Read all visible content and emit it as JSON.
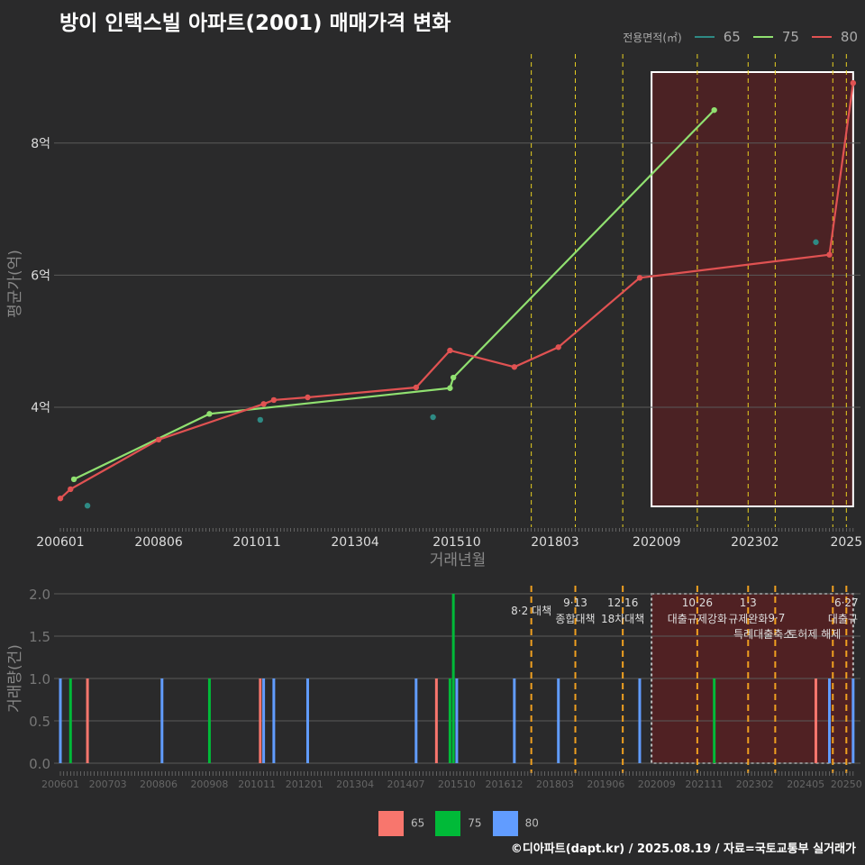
{
  "title": "방이 인택스빌 아파트(2001) 매매가격 변화",
  "legend_title": "전용면적(㎡)",
  "series_colors": {
    "65": "#2e8a84",
    "75": "#90e070",
    "80": "#e05252"
  },
  "bar_colors": {
    "65": "#f8766d",
    "75": "#00ba38",
    "80": "#619cff"
  },
  "footer": "©디아파트(dapt.kr) / 2025.08.19 / 자료=국토교통부 실거래가",
  "chart_data": [
    {
      "type": "line",
      "title": "방이 인택스빌 아파트(2001) 매매가격 변화",
      "xlabel": "거래년월",
      "ylabel": "평균가(억)",
      "x_origin": "200601",
      "x_unit": "months since 200601",
      "xticks": [
        {
          "m": 0,
          "label": "200601"
        },
        {
          "m": 29,
          "label": "200806"
        },
        {
          "m": 58,
          "label": "201011"
        },
        {
          "m": 87,
          "label": "201304"
        },
        {
          "m": 117,
          "label": "201510"
        },
        {
          "m": 146,
          "label": "201803"
        },
        {
          "m": 176,
          "label": "202009"
        },
        {
          "m": 205,
          "label": "202302"
        },
        {
          "m": 232,
          "label": "2025"
        }
      ],
      "yticks": [
        {
          "v": 4,
          "label": "4억"
        },
        {
          "v": 6,
          "label": "6억"
        },
        {
          "v": 8,
          "label": "8억"
        }
      ],
      "ylim": [
        2.1,
        9.5
      ],
      "series": [
        {
          "name": "65",
          "mode": "points",
          "points": [
            [
              8,
              2.51
            ],
            [
              59,
              3.81
            ],
            [
              110,
              3.85
            ],
            [
              223,
              6.5
            ]
          ]
        },
        {
          "name": "75",
          "mode": "line",
          "points": [
            [
              4,
              2.91
            ],
            [
              44,
              3.9
            ],
            [
              115,
              4.29
            ],
            [
              116,
              4.45
            ],
            [
              193,
              8.5
            ]
          ]
        },
        {
          "name": "80",
          "mode": "line",
          "points": [
            [
              0,
              2.62
            ],
            [
              3,
              2.76
            ],
            [
              29,
              3.51
            ],
            [
              60,
              4.05
            ],
            [
              63,
              4.11
            ],
            [
              73,
              4.15
            ],
            [
              105,
              4.3
            ],
            [
              115,
              4.86
            ],
            [
              134,
              4.61
            ],
            [
              147,
              4.91
            ],
            [
              171,
              5.96
            ],
            [
              227,
              6.31
            ],
            [
              234,
              8.91
            ]
          ]
        }
      ],
      "policy_lines": [
        139,
        152,
        166,
        188,
        203,
        211,
        228,
        232
      ],
      "highlight_range": [
        174.5,
        234
      ]
    },
    {
      "type": "bar",
      "xlabel": "",
      "ylabel": "거래량(건)",
      "yticks": [
        {
          "v": 0,
          "label": "0.0"
        },
        {
          "v": 0.5,
          "label": "0.5"
        },
        {
          "v": 1,
          "label": "1.0"
        },
        {
          "v": 1.5,
          "label": "1.5"
        },
        {
          "v": 2,
          "label": "2.0"
        }
      ],
      "ylim": [
        0,
        2
      ],
      "xticks": [
        {
          "m": 0,
          "label": "200601"
        },
        {
          "m": 14,
          "label": "200703"
        },
        {
          "m": 29,
          "label": "200806"
        },
        {
          "m": 44,
          "label": "200908"
        },
        {
          "m": 58,
          "label": "201011"
        },
        {
          "m": 72,
          "label": "201201"
        },
        {
          "m": 87,
          "label": "201304"
        },
        {
          "m": 102,
          "label": "201407"
        },
        {
          "m": 117,
          "label": "201510"
        },
        {
          "m": 131,
          "label": "201612"
        },
        {
          "m": 146,
          "label": "201803"
        },
        {
          "m": 161,
          "label": "201906"
        },
        {
          "m": 176,
          "label": "202009"
        },
        {
          "m": 190,
          "label": "202111"
        },
        {
          "m": 205,
          "label": "202302"
        },
        {
          "m": 220,
          "label": "202405"
        },
        {
          "m": 232,
          "label": "20250"
        }
      ],
      "bars": [
        {
          "m": 0,
          "s": "80",
          "c": 1
        },
        {
          "m": 3,
          "s": "75",
          "c": 1
        },
        {
          "m": 8,
          "s": "65",
          "c": 1
        },
        {
          "m": 30,
          "s": "80",
          "c": 1
        },
        {
          "m": 44,
          "s": "75",
          "c": 1
        },
        {
          "m": 59,
          "s": "65",
          "c": 1
        },
        {
          "m": 60,
          "s": "80",
          "c": 1
        },
        {
          "m": 63,
          "s": "80",
          "c": 1
        },
        {
          "m": 73,
          "s": "80",
          "c": 1
        },
        {
          "m": 105,
          "s": "80",
          "c": 1
        },
        {
          "m": 111,
          "s": "65",
          "c": 1
        },
        {
          "m": 115,
          "s": "75",
          "c": 1
        },
        {
          "m": 116,
          "s": "75",
          "c": 2
        },
        {
          "m": 117,
          "s": "80",
          "c": 1
        },
        {
          "m": 134,
          "s": "80",
          "c": 1
        },
        {
          "m": 147,
          "s": "80",
          "c": 1
        },
        {
          "m": 171,
          "s": "80",
          "c": 1
        },
        {
          "m": 193,
          "s": "75",
          "c": 1
        },
        {
          "m": 223,
          "s": "65",
          "c": 1
        },
        {
          "m": 227,
          "s": "80",
          "c": 1
        },
        {
          "m": 234,
          "s": "80",
          "c": 1
        }
      ],
      "annotations": [
        {
          "m": 139,
          "date": "",
          "label": "8·2 대책"
        },
        {
          "m": 152,
          "date": "9·13",
          "label": "종합대책"
        },
        {
          "m": 166,
          "date": "12·16",
          "label": "18차대책"
        },
        {
          "m": 188,
          "date": "10·26",
          "label": "대출규제강화"
        },
        {
          "m": 203,
          "date": "1·3",
          "label": "규제완화"
        },
        {
          "m": 211,
          "date": "9·7",
          "label": "특례대출축소"
        },
        {
          "m": 228,
          "date": "",
          "label": "토허제 해제"
        },
        {
          "m": 232,
          "date": "6·27",
          "label": "대출규"
        }
      ],
      "legend": [
        "65",
        "75",
        "80"
      ]
    }
  ]
}
